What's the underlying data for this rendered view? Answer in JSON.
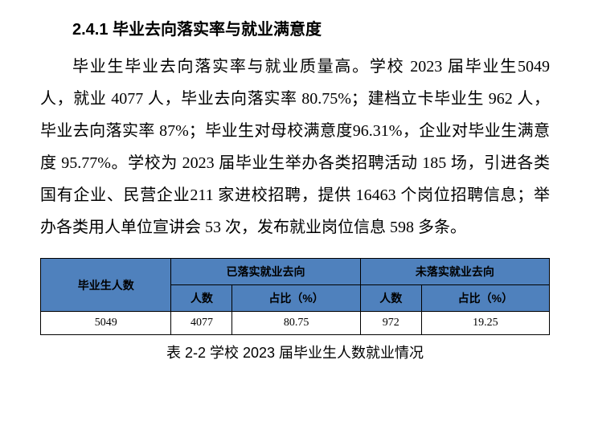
{
  "section_title": "2.4.1 毕业去向落实率与就业满意度",
  "paragraph": "毕业生毕业去向落实率与就业质量高。学校 2023 届毕业生5049 人，就业 4077 人，毕业去向落实率 80.75%；建档立卡毕业生 962 人，毕业去向落实率 87%；毕业生对母校满意度96.31%，企业对毕业生满意度 95.77%。学校为 2023 届毕业生举办各类招聘活动 185 场，引进各类国有企业、民营企业211 家进校招聘，提供 16463 个岗位招聘信息；举办各类用人单位宣讲会 53 次，发布就业岗位信息 598 多条。",
  "table": {
    "type": "table",
    "header_bg": "#4f81bd",
    "border_color": "#000000",
    "columns": {
      "grad_count": "毕业生人数",
      "employed_group": "已落实就业去向",
      "unemployed_group": "未落实就业去向",
      "count_label": "人数",
      "ratio_label": "占比（%）"
    },
    "row": {
      "grad_count": "5049",
      "employed_count": "4077",
      "employed_ratio": "80.75",
      "unemployed_count": "972",
      "unemployed_ratio": "19.25"
    },
    "caption": "表 2-2 学校 2023 届毕业生人数就业情况"
  }
}
